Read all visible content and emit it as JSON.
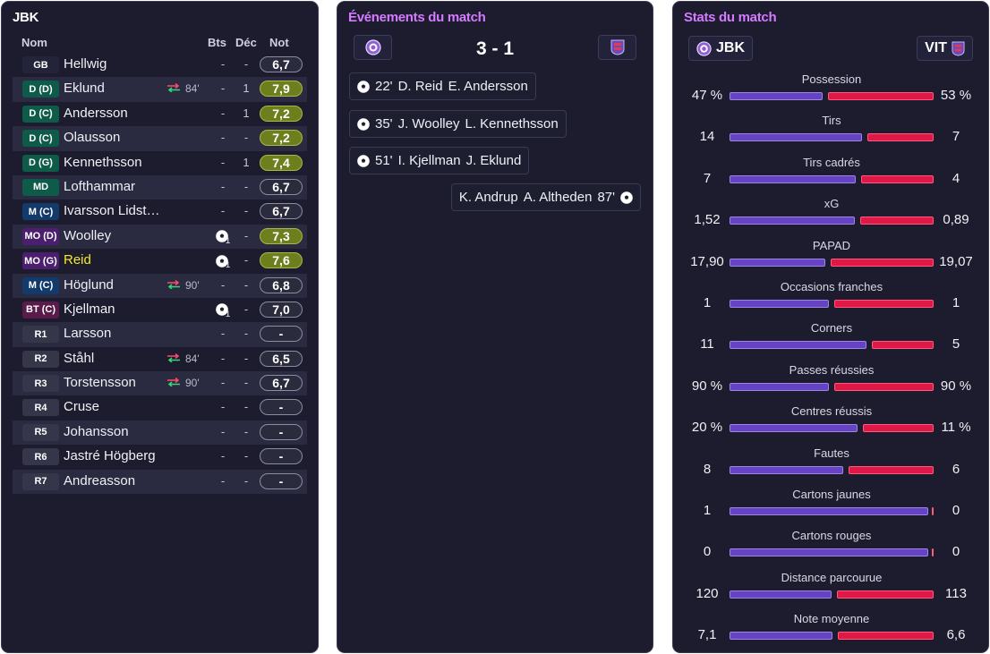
{
  "lineup": {
    "title": "JBK",
    "headers": {
      "name": "Nom",
      "goals": "Bts",
      "decisive": "Déc",
      "rating": "Not"
    },
    "players": [
      {
        "pos": "GB",
        "name": "Hellwig",
        "sub": "",
        "sub_time": "",
        "goals": "-",
        "dec": "-",
        "rating": "6,7",
        "pos_color": "#23233a",
        "good": false
      },
      {
        "pos": "D (D)",
        "name": "Eklund",
        "sub": "out",
        "sub_time": "84'",
        "goals": "-",
        "dec": "1",
        "rating": "7,9",
        "pos_color": "#0f5b4a",
        "good": true
      },
      {
        "pos": "D (C)",
        "name": "Andersson",
        "sub": "",
        "sub_time": "",
        "goals": "-",
        "dec": "1",
        "rating": "7,2",
        "pos_color": "#0f5b4a",
        "good": true
      },
      {
        "pos": "D (C)",
        "name": "Olausson",
        "sub": "",
        "sub_time": "",
        "goals": "-",
        "dec": "-",
        "rating": "7,2",
        "pos_color": "#0f5b4a",
        "good": true
      },
      {
        "pos": "D (G)",
        "name": "Kennethsson",
        "sub": "",
        "sub_time": "",
        "goals": "-",
        "dec": "1",
        "rating": "7,4",
        "pos_color": "#0f5b4a",
        "good": true
      },
      {
        "pos": "MD",
        "name": "Lofthammar",
        "sub": "",
        "sub_time": "",
        "goals": "-",
        "dec": "-",
        "rating": "6,7",
        "pos_color": "#0f5b4a",
        "good": false
      },
      {
        "pos": "M (C)",
        "name": "Ivarsson Lidst…",
        "sub": "",
        "sub_time": "",
        "goals": "-",
        "dec": "-",
        "rating": "6,7",
        "pos_color": "#123a6a",
        "good": false
      },
      {
        "pos": "MO (D)",
        "name": "Woolley",
        "sub": "",
        "sub_time": "",
        "goals": "1",
        "dec": "-",
        "rating": "7,3",
        "pos_color": "#4b1e6e",
        "good": true
      },
      {
        "pos": "MO (G)",
        "name": "Reid",
        "sub": "",
        "sub_time": "",
        "goals": "1",
        "dec": "-",
        "rating": "7,6",
        "pos_color": "#4b1e6e",
        "good": true,
        "highlight": true
      },
      {
        "pos": "M (C)",
        "name": "Höglund",
        "sub": "out",
        "sub_time": "90'",
        "goals": "-",
        "dec": "-",
        "rating": "6,8",
        "pos_color": "#123a6a",
        "good": false
      },
      {
        "pos": "BT (C)",
        "name": "Kjellman",
        "sub": "",
        "sub_time": "",
        "goals": "1",
        "dec": "-",
        "rating": "7,0",
        "pos_color": "#5a1a4a",
        "good": false
      },
      {
        "pos": "R1",
        "name": "Larsson",
        "sub": "",
        "sub_time": "",
        "goals": "-",
        "dec": "-",
        "rating": "-",
        "pos_color": "#35364a",
        "good": false
      },
      {
        "pos": "R2",
        "name": "Ståhl",
        "sub": "in",
        "sub_time": "84'",
        "goals": "-",
        "dec": "-",
        "rating": "6,5",
        "pos_color": "#35364a",
        "good": false
      },
      {
        "pos": "R3",
        "name": "Torstensson",
        "sub": "in",
        "sub_time": "90'",
        "goals": "-",
        "dec": "-",
        "rating": "6,7",
        "pos_color": "#35364a",
        "good": false
      },
      {
        "pos": "R4",
        "name": "Cruse",
        "sub": "",
        "sub_time": "",
        "goals": "-",
        "dec": "-",
        "rating": "-",
        "pos_color": "#35364a",
        "good": false
      },
      {
        "pos": "R5",
        "name": "Johansson",
        "sub": "",
        "sub_time": "",
        "goals": "-",
        "dec": "-",
        "rating": "-",
        "pos_color": "#35364a",
        "good": false
      },
      {
        "pos": "R6",
        "name": "Jastré Högberg",
        "sub": "",
        "sub_time": "",
        "goals": "-",
        "dec": "-",
        "rating": "-",
        "pos_color": "#35364a",
        "good": false
      },
      {
        "pos": "R7",
        "name": "Andreasson",
        "sub": "",
        "sub_time": "",
        "goals": "-",
        "dec": "-",
        "rating": "-",
        "pos_color": "#35364a",
        "good": false
      }
    ]
  },
  "events": {
    "title": "Événements du match",
    "score": "3 - 1",
    "items": [
      {
        "side": "home",
        "minute": "22'",
        "scorer": "D. Reid",
        "assist": "E. Andersson"
      },
      {
        "side": "home",
        "minute": "35'",
        "scorer": "J. Woolley",
        "assist": "L. Kennethsson"
      },
      {
        "side": "home",
        "minute": "51'",
        "scorer": "I. Kjellman",
        "assist": "J. Eklund"
      },
      {
        "side": "away",
        "minute": "87'",
        "scorer": "A. Altheden",
        "assist": "K. Andrup"
      }
    ]
  },
  "stats": {
    "title": "Stats du match",
    "home_team": "JBK",
    "away_team": "VIT",
    "colors": {
      "home": "#6543c4",
      "away": "#e01848"
    },
    "items": [
      {
        "label": "Possession",
        "home": "47 %",
        "away": "53 %",
        "home_share": 0.47
      },
      {
        "label": "Tirs",
        "home": "14",
        "away": "7",
        "home_share": 0.667
      },
      {
        "label": "Tirs cadrés",
        "home": "7",
        "away": "4",
        "home_share": 0.636
      },
      {
        "label": "xG",
        "home": "1,52",
        "away": "0,89",
        "home_share": 0.631
      },
      {
        "label": "PAPAD",
        "home": "17,90",
        "away": "19,07",
        "home_share": 0.484
      },
      {
        "label": "Occasions franches",
        "home": "1",
        "away": "1",
        "home_share": 0.5
      },
      {
        "label": "Corners",
        "home": "11",
        "away": "5",
        "home_share": 0.6875
      },
      {
        "label": "Passes réussies",
        "home": "90 %",
        "away": "90 %",
        "home_share": 0.5
      },
      {
        "label": "Centres réussis",
        "home": "20 %",
        "away": "11 %",
        "home_share": 0.645
      },
      {
        "label": "Fautes",
        "home": "8",
        "away": "6",
        "home_share": 0.571
      },
      {
        "label": "Cartons jaunes",
        "home": "1",
        "away": "0",
        "home_share": 1.0
      },
      {
        "label": "Cartons rouges",
        "home": "0",
        "away": "0",
        "home_share": 1.0
      },
      {
        "label": "Distance parcourue",
        "home": "120",
        "away": "113",
        "home_share": 0.515
      },
      {
        "label": "Note moyenne",
        "home": "7,1",
        "away": "6,6",
        "home_share": 0.518
      }
    ]
  }
}
